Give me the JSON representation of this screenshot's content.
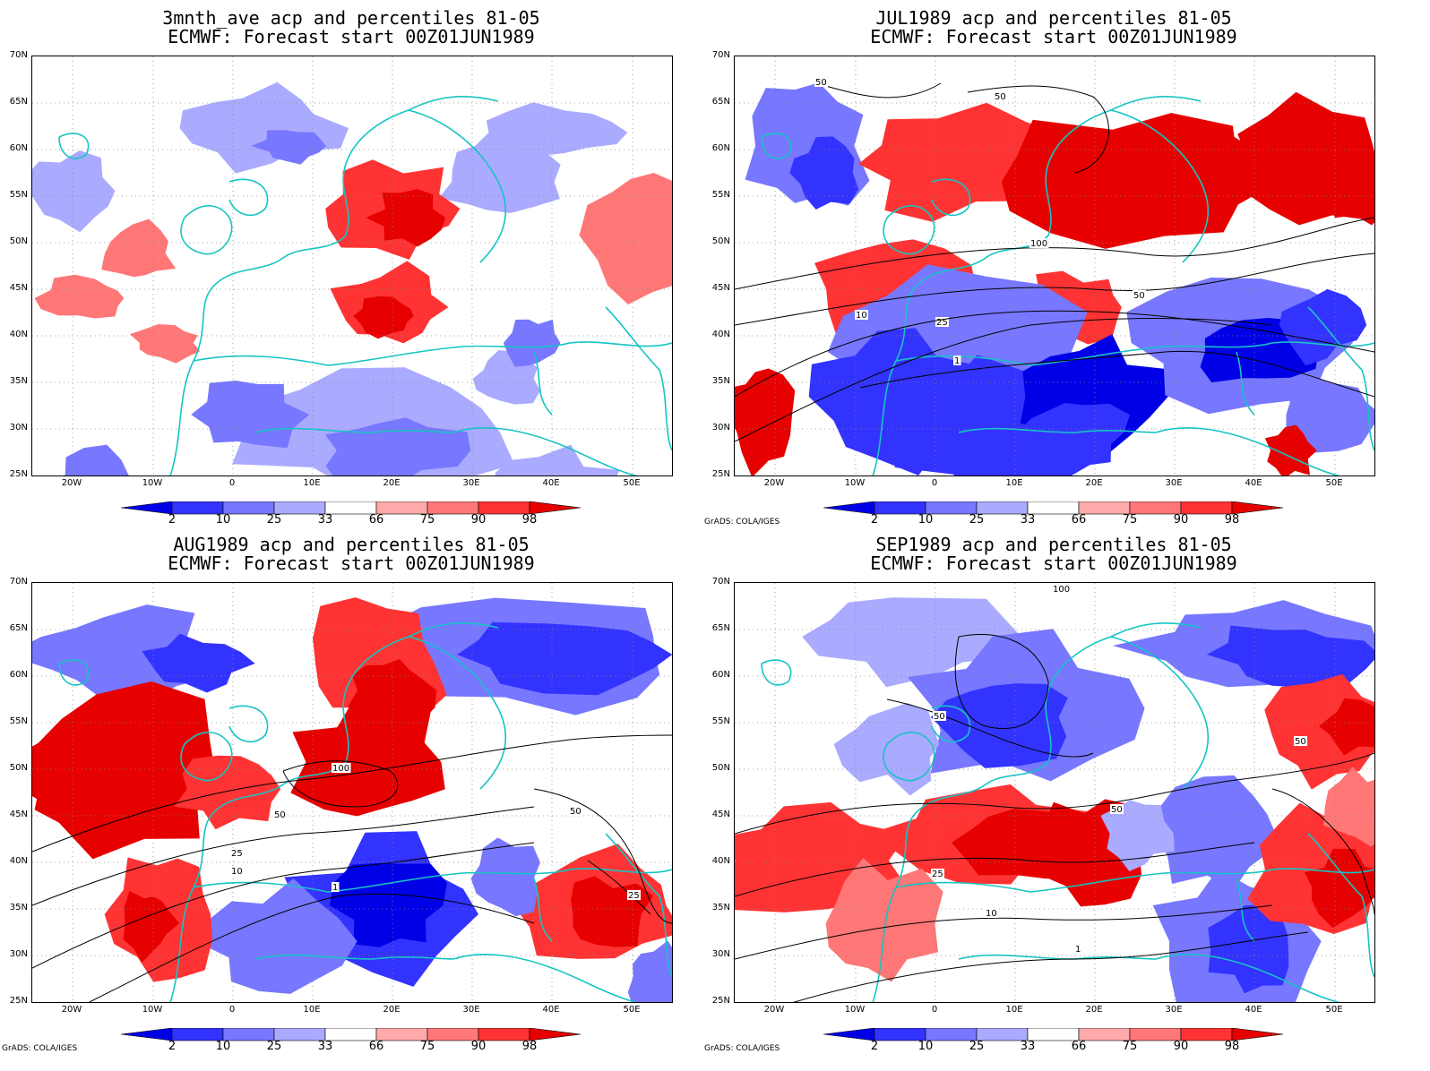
{
  "panels": [
    {
      "id": "p1",
      "title1": "3mnth_ave acp and percentiles 81-05",
      "title2": "ECMWF: Forecast start 00Z01JUN1989",
      "credit": "",
      "contours": false
    },
    {
      "id": "p2",
      "title1": "JUL1989 acp and percentiles 81-05",
      "title2": "ECMWF: Forecast start 00Z01JUN1989",
      "credit": "GrADS: COLA/IGES",
      "contours": true
    },
    {
      "id": "p3",
      "title1": "AUG1989 acp and percentiles 81-05",
      "title2": "ECMWF: Forecast start 00Z01JUN1989",
      "credit": "GrADS: COLA/IGES",
      "contours": true
    },
    {
      "id": "p4",
      "title1": "SEP1989 acp and percentiles 81-05",
      "title2": "ECMWF: Forecast start 00Z01JUN1989",
      "credit": "GrADS: COLA/IGES",
      "contours": true
    }
  ],
  "lat_labels": [
    "70N",
    "65N",
    "60N",
    "55N",
    "50N",
    "45N",
    "40N",
    "35N",
    "30N",
    "25N"
  ],
  "lon_labels": [
    "20W",
    "10W",
    "0",
    "10E",
    "20E",
    "30E",
    "40E",
    "50E"
  ],
  "colorbar": {
    "labels": [
      "2",
      "10",
      "25",
      "33",
      "66",
      "75",
      "90",
      "98"
    ],
    "colors": [
      "#0000e6",
      "#3333ff",
      "#7777ff",
      "#aaaaff",
      "#ffffff",
      "#ffaaaa",
      "#ff7777",
      "#ff3333",
      "#e60000"
    ]
  },
  "contour_labels": [
    "1",
    "10",
    "25",
    "50",
    "100"
  ]
}
